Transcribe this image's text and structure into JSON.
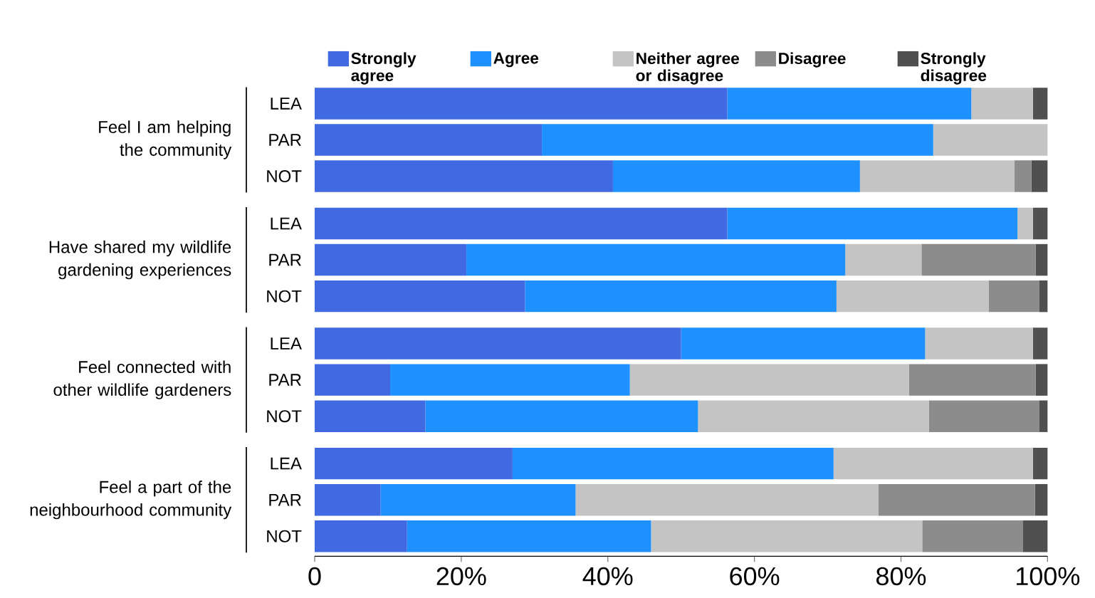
{
  "chart_data": {
    "type": "bar",
    "orientation": "horizontal",
    "stacked": true,
    "categories": [
      "LEA",
      "PAR",
      "NOT",
      "LEA",
      "PAR",
      "NOT",
      "LEA",
      "PAR",
      "NOT",
      "LEA",
      "PAR",
      "NOT"
    ],
    "annotations": [
      "Feel I am helping the community",
      "Have shared my wildlife gardening experiences",
      "Feel connected with other wildlife gardeners",
      "Feel a part of the neighbourhood community"
    ],
    "series": [
      {
        "name": "Strongly agree",
        "color": "#4169e1",
        "values": [
          56.3,
          31.0,
          40.7,
          56.3,
          20.7,
          28.7,
          50.0,
          10.3,
          15.1,
          27.0,
          9.0,
          12.6
        ]
      },
      {
        "name": "Agree",
        "color": "#1e90ff",
        "values": [
          33.3,
          53.4,
          33.7,
          39.6,
          51.7,
          42.5,
          33.3,
          32.7,
          37.2,
          43.8,
          26.6,
          33.3
        ]
      },
      {
        "name": "Neither  agree or disagree",
        "color": "#c4c4c4",
        "values": [
          8.4,
          15.6,
          21.1,
          2.1,
          10.4,
          20.8,
          14.7,
          38.1,
          31.5,
          27.2,
          41.3,
          37.0
        ]
      },
      {
        "name": "Disagree",
        "color": "#8c8c8c",
        "values": [
          0,
          0,
          2.3,
          0,
          15.6,
          6.9,
          0,
          17.3,
          15.1,
          0,
          21.4,
          13.7
        ]
      },
      {
        "name": "Strongly disagree",
        "color": "#505050",
        "values": [
          2.0,
          0,
          2.2,
          2.0,
          1.6,
          1.1,
          2.0,
          1.6,
          1.1,
          2.0,
          1.7,
          3.4
        ]
      }
    ],
    "xlim": [
      0,
      100
    ],
    "xticks": [
      0,
      {
        "value": 20,
        "label": "20%"
      },
      {
        "value": 40,
        "label": "40%"
      },
      {
        "value": 60,
        "label": "60%"
      },
      {
        "value": 80,
        "label": "80%"
      },
      {
        "value": 100,
        "label": "100%"
      }
    ],
    "legend": "top"
  }
}
